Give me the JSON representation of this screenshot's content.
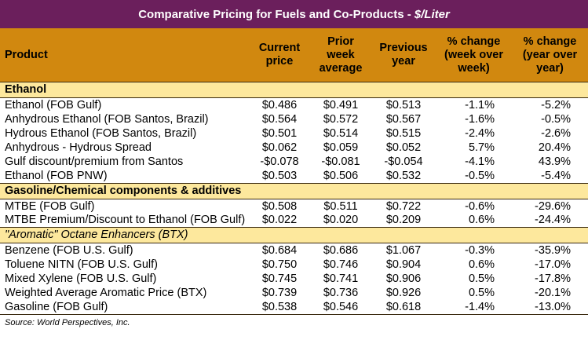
{
  "title": "Comparative Pricing for Fuels and Co-Products - ",
  "title_unit": "$/Liter",
  "colors": {
    "title_bg": "#6b1f5c",
    "header_bg": "#d1880f",
    "section_bg": "#fde89d"
  },
  "headers": {
    "product": "Product",
    "current": "Current price",
    "prior": "Prior week average",
    "previous": "Previous year",
    "wow": "% change (week over week)",
    "yoy": "% change (year over year)"
  },
  "sections": [
    {
      "name": "Ethanol",
      "italic": false,
      "rows": [
        [
          "Ethanol (FOB Gulf)",
          "$0.486",
          "$0.491",
          "$0.513",
          "-1.1%",
          "-5.2%"
        ],
        [
          "Anhydrous Ethanol (FOB Santos, Brazil)",
          "$0.564",
          "$0.572",
          "$0.567",
          "-1.6%",
          "-0.5%"
        ],
        [
          "Hydrous Ethanol (FOB Santos, Brazil)",
          "$0.501",
          "$0.514",
          "$0.515",
          "-2.4%",
          "-2.6%"
        ],
        [
          "Anhydrous - Hydrous Spread",
          "$0.062",
          "$0.059",
          "$0.052",
          "5.7%",
          "20.4%"
        ],
        [
          "Gulf discount/premium from Santos",
          "-$0.078",
          "-$0.081",
          "-$0.054",
          "-4.1%",
          "43.9%"
        ],
        [
          "Ethanol (FOB PNW)",
          "$0.503",
          "$0.506",
          "$0.532",
          "-0.5%",
          "-5.4%"
        ]
      ]
    },
    {
      "name": "Gasoline/Chemical components & additives",
      "italic": false,
      "rows": [
        [
          "MTBE (FOB Gulf)",
          "$0.508",
          "$0.511",
          "$0.722",
          "-0.6%",
          "-29.6%"
        ],
        [
          "MTBE Premium/Discount to Ethanol (FOB Gulf)",
          "$0.022",
          "$0.020",
          "$0.209",
          "0.6%",
          "-24.4%"
        ]
      ]
    },
    {
      "name": "\"Aromatic\" Octane Enhancers (BTX)",
      "italic": true,
      "rows": [
        [
          "Benzene (FOB U.S. Gulf)",
          "$0.684",
          "$0.686",
          "$1.067",
          "-0.3%",
          "-35.9%"
        ],
        [
          "Toluene NITN (FOB U.S. Gulf)",
          "$0.750",
          "$0.746",
          "$0.904",
          "0.6%",
          "-17.0%"
        ],
        [
          "Mixed Xylene (FOB U.S. Gulf)",
          "$0.745",
          "$0.741",
          "$0.906",
          "0.5%",
          "-17.8%"
        ],
        [
          "Weighted Average Aromatic Price (BTX)",
          "$0.739",
          "$0.736",
          "$0.926",
          "0.5%",
          "-20.1%"
        ],
        [
          "Gasoline (FOB Gulf)",
          "$0.538",
          "$0.546",
          "$0.618",
          "-1.4%",
          "-13.0%"
        ]
      ]
    }
  ],
  "source": "Source: World Perspectives, Inc."
}
